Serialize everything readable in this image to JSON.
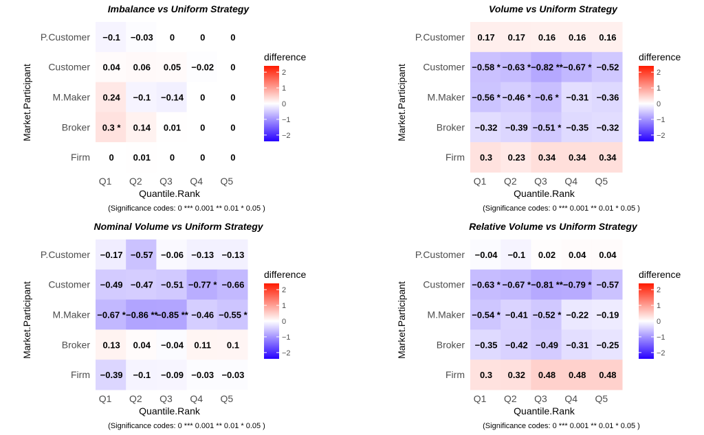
{
  "chart_data": [
    {
      "type": "heatmap",
      "title": "Imbalance vs Uniform Strategy",
      "xlabel": "Quantile.Rank",
      "ylabel": "Market.Participant",
      "x": [
        "Q1",
        "Q2",
        "Q3",
        "Q4",
        "Q5"
      ],
      "y": [
        "P.Customer",
        "Customer",
        "M.Maker",
        "Broker",
        "Firm"
      ],
      "values": [
        [
          -0.1,
          -0.03,
          0,
          0,
          0
        ],
        [
          0.04,
          0.06,
          0.05,
          -0.02,
          0
        ],
        [
          0.24,
          -0.1,
          -0.14,
          0,
          0
        ],
        [
          0.3,
          0.14,
          0.01,
          0,
          0
        ],
        [
          0,
          0.01,
          0,
          0,
          0
        ]
      ],
      "labels": [
        [
          "−0.1",
          "−0.03",
          "0",
          "0",
          "0"
        ],
        [
          "0.04",
          "0.06",
          "0.05",
          "−0.02",
          "0"
        ],
        [
          "0.24",
          "−0.1",
          "−0.14",
          "0",
          "0"
        ],
        [
          "0.3 *",
          "0.14",
          "0.01",
          "0",
          "0"
        ],
        [
          "0",
          "0.01",
          "0",
          "0",
          "0"
        ]
      ],
      "legend": {
        "title": "difference",
        "ticks": [
          "2",
          "1",
          "0",
          "−1",
          "−2"
        ],
        "range": [
          -2.4,
          2.4
        ]
      },
      "caption": "(Significance codes:  0 *** 0.001 ** 0.01 * 0.05 )"
    },
    {
      "type": "heatmap",
      "title": "Volume vs Uniform Strategy",
      "xlabel": "Quantile.Rank",
      "ylabel": "Market.Participant",
      "x": [
        "Q1",
        "Q2",
        "Q3",
        "Q4",
        "Q5"
      ],
      "y": [
        "P.Customer",
        "Customer",
        "M.Maker",
        "Broker",
        "Firm"
      ],
      "values": [
        [
          0.17,
          0.17,
          0.16,
          0.16,
          0.16
        ],
        [
          -0.58,
          -0.63,
          -0.82,
          -0.67,
          -0.52
        ],
        [
          -0.56,
          -0.46,
          -0.6,
          -0.31,
          -0.36
        ],
        [
          -0.32,
          -0.39,
          -0.51,
          -0.35,
          -0.32
        ],
        [
          0.3,
          0.23,
          0.34,
          0.34,
          0.34
        ]
      ],
      "labels": [
        [
          "0.17",
          "0.17",
          "0.16",
          "0.16",
          "0.16"
        ],
        [
          "−0.58 *",
          "−0.63 *",
          "−0.82 **",
          "−0.67 *",
          "−0.52"
        ],
        [
          "−0.56 *",
          "−0.46 *",
          "−0.6 *",
          "−0.31",
          "−0.36"
        ],
        [
          "−0.32",
          "−0.39",
          "−0.51 *",
          "−0.35",
          "−0.32"
        ],
        [
          "0.3",
          "0.23",
          "0.34",
          "0.34",
          "0.34"
        ]
      ],
      "legend": {
        "title": "difference",
        "ticks": [
          "2",
          "1",
          "0",
          "−1",
          "−2"
        ],
        "range": [
          -2.4,
          2.4
        ]
      },
      "caption": "(Significance codes:  0 *** 0.001 ** 0.01 * 0.05 )"
    },
    {
      "type": "heatmap",
      "title": "Nominal Volume vs Uniform Strategy",
      "xlabel": "Quantile.Rank",
      "ylabel": "Market.Participant",
      "x": [
        "Q1",
        "Q2",
        "Q3",
        "Q4",
        "Q5"
      ],
      "y": [
        "P.Customer",
        "Customer",
        "M.Maker",
        "Broker",
        "Firm"
      ],
      "values": [
        [
          -0.17,
          -0.57,
          -0.06,
          -0.13,
          -0.13
        ],
        [
          -0.49,
          -0.47,
          -0.51,
          -0.77,
          -0.66
        ],
        [
          -0.67,
          -0.86,
          -0.85,
          -0.46,
          -0.55
        ],
        [
          0.13,
          0.04,
          -0.04,
          0.11,
          0.1
        ],
        [
          -0.39,
          -0.1,
          -0.09,
          -0.03,
          -0.03
        ]
      ],
      "labels": [
        [
          "−0.17",
          "−0.57",
          "−0.06",
          "−0.13",
          "−0.13"
        ],
        [
          "−0.49",
          "−0.47",
          "−0.51",
          "−0.77 *",
          "−0.66"
        ],
        [
          "−0.67 *",
          "−0.86 **",
          "−0.85 **",
          "−0.46",
          "−0.55 *"
        ],
        [
          "0.13",
          "0.04",
          "−0.04",
          "0.11",
          "0.1"
        ],
        [
          "−0.39",
          "−0.1",
          "−0.09",
          "−0.03",
          "−0.03"
        ]
      ],
      "legend": {
        "title": "difference",
        "ticks": [
          "2",
          "1",
          "0",
          "−1",
          "−2"
        ],
        "range": [
          -2.4,
          2.4
        ]
      },
      "caption": "(Significance codes:  0 *** 0.001 ** 0.01 * 0.05 )"
    },
    {
      "type": "heatmap",
      "title": "Relative Volume vs Uniform Strategy",
      "xlabel": "Quantile.Rank",
      "ylabel": "Market.Participant",
      "x": [
        "Q1",
        "Q2",
        "Q3",
        "Q4",
        "Q5"
      ],
      "y": [
        "P.Customer",
        "Customer",
        "M.Maker",
        "Broker",
        "Firm"
      ],
      "values": [
        [
          -0.04,
          -0.1,
          0.02,
          0.04,
          0.04
        ],
        [
          -0.63,
          -0.67,
          -0.81,
          -0.79,
          -0.57
        ],
        [
          -0.54,
          -0.41,
          -0.52,
          -0.22,
          -0.19
        ],
        [
          -0.35,
          -0.42,
          -0.49,
          -0.31,
          -0.25
        ],
        [
          0.3,
          0.32,
          0.48,
          0.48,
          0.48
        ]
      ],
      "labels": [
        [
          "−0.04",
          "−0.1",
          "0.02",
          "0.04",
          "0.04"
        ],
        [
          "−0.63 *",
          "−0.67 *",
          "−0.81 **",
          "−0.79 *",
          "−0.57"
        ],
        [
          "−0.54 *",
          "−0.41",
          "−0.52 *",
          "−0.22",
          "−0.19"
        ],
        [
          "−0.35",
          "−0.42",
          "−0.49",
          "−0.31",
          "−0.25"
        ],
        [
          "0.3",
          "0.32",
          "0.48",
          "0.48",
          "0.48"
        ]
      ],
      "legend": {
        "title": "difference",
        "ticks": [
          "2",
          "1",
          "0",
          "−1",
          "−2"
        ],
        "range": [
          -2.4,
          2.4
        ]
      },
      "caption": "(Significance codes:  0 *** 0.001 ** 0.01 * 0.05 )"
    }
  ],
  "colors": {
    "negative": "#2600ff",
    "neutral": "#ffffff",
    "positive": "#ff1a00"
  }
}
